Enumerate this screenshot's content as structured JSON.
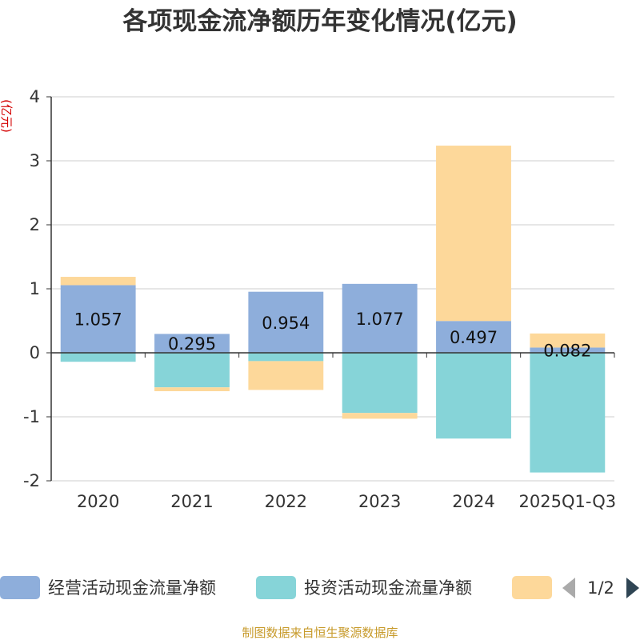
{
  "chart_data": {
    "type": "bar",
    "stacked": true,
    "title": "各项现金流净额历年变化情况(亿元)",
    "ylabel": "(亿元)",
    "ylim": [
      -2,
      4
    ],
    "yticks": [
      4,
      3,
      2,
      1,
      0,
      -1,
      -2
    ],
    "grid": true,
    "categories": [
      "2020",
      "2021",
      "2022",
      "2023",
      "2024",
      "2025Q1-Q3"
    ],
    "series": [
      {
        "name": "经营活动现金流量净额",
        "color": "#8eaedb",
        "values": [
          1.057,
          0.295,
          0.954,
          1.077,
          0.497,
          0.082
        ],
        "labels": [
          "1.057",
          "0.295",
          "0.954",
          "1.077",
          "0.497",
          "0.082"
        ]
      },
      {
        "name": "投资活动现金流量净额",
        "color": "#86d4d8",
        "values": [
          -0.14,
          -0.54,
          -0.13,
          -0.94,
          -1.34,
          -1.87
        ]
      },
      {
        "name": "",
        "color": "#fdd89a",
        "values": [
          0.13,
          -0.06,
          -0.45,
          -0.09,
          2.74,
          0.22
        ]
      }
    ],
    "legend_position": "bottom"
  },
  "legend": {
    "pager": "1/2"
  },
  "source": "制图数据来自恒生聚源数据库"
}
